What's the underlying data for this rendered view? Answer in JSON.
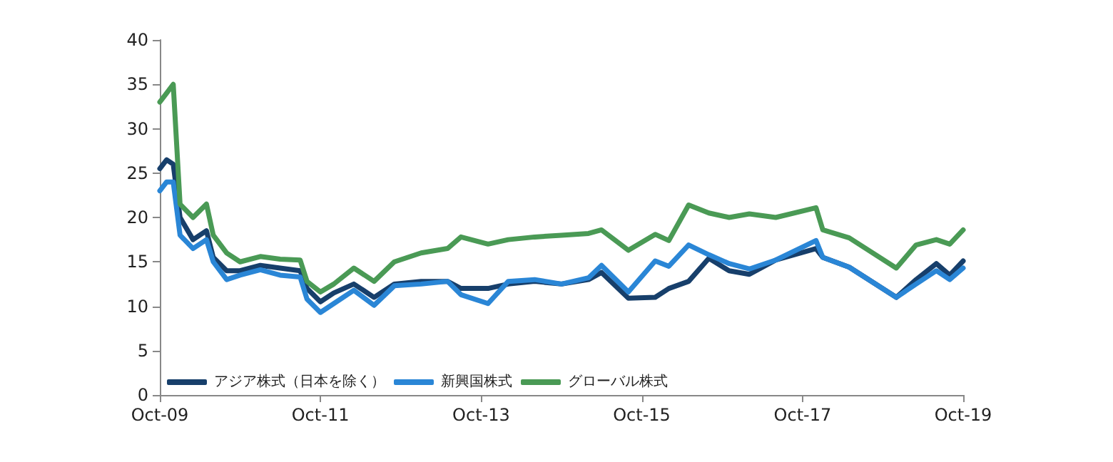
{
  "chart_data": {
    "type": "line",
    "x": [
      "2009-10",
      "2009-11",
      "2009-12",
      "2010-01",
      "2010-03",
      "2010-05",
      "2010-06",
      "2010-08",
      "2010-10",
      "2011-01",
      "2011-04",
      "2011-07",
      "2011-08",
      "2011-10",
      "2011-12",
      "2012-03",
      "2012-06",
      "2012-09",
      "2013-01",
      "2013-05",
      "2013-07",
      "2013-11",
      "2014-02",
      "2014-06",
      "2014-10",
      "2015-02",
      "2015-04",
      "2015-08",
      "2015-12",
      "2016-02",
      "2016-05",
      "2016-08",
      "2016-11",
      "2017-02",
      "2017-06",
      "2017-12",
      "2018-01",
      "2018-05",
      "2018-12",
      "2019-03",
      "2019-06",
      "2019-08",
      "2019-10"
    ],
    "series": [
      {
        "name": "アジア株式（日本を除く）",
        "color": "#173f6b",
        "values": [
          25.5,
          26.5,
          26,
          20,
          17.5,
          18.5,
          15.5,
          14,
          14,
          14.6,
          14.3,
          14,
          12,
          10.5,
          11.5,
          12.5,
          11,
          12.5,
          12.8,
          12.8,
          12,
          12,
          12.5,
          12.8,
          12.5,
          13,
          13.8,
          10.9,
          11,
          12,
          12.8,
          15.4,
          14,
          13.6,
          15.2,
          16.5,
          15.5,
          14.4,
          11,
          13,
          14.8,
          13.5,
          15.1
        ]
      },
      {
        "name": "新興国株式",
        "color": "#2a86d6",
        "values": [
          23,
          24,
          24,
          18,
          16.5,
          17.5,
          15,
          13,
          13.5,
          14.1,
          13.5,
          13.3,
          10.8,
          9.3,
          10.3,
          11.8,
          10.1,
          12.3,
          12.5,
          12.8,
          11.3,
          10.3,
          12.8,
          13,
          12.5,
          13.2,
          14.6,
          11.6,
          15.1,
          14.5,
          16.9,
          15.8,
          14.8,
          14.2,
          15.2,
          17.4,
          15.5,
          14.4,
          11,
          12.5,
          14,
          13,
          14.3
        ]
      },
      {
        "name": "グローバル株式",
        "color": "#4a9a55",
        "values": [
          33,
          34,
          35,
          21.5,
          20,
          21.5,
          18,
          16,
          15,
          15.6,
          15.3,
          15.2,
          12.8,
          11.6,
          12.5,
          14.3,
          12.8,
          15,
          16,
          16.5,
          17.8,
          17,
          17.5,
          17.8,
          18,
          18.2,
          18.6,
          16.3,
          18.1,
          17.4,
          21.4,
          20.5,
          20,
          20.4,
          20,
          21.1,
          18.6,
          17.7,
          14.3,
          16.9,
          17.5,
          17,
          18.6
        ]
      }
    ],
    "xlim": [
      "2009-10",
      "2019-10"
    ],
    "xticks": [
      {
        "value": "2009-10",
        "label": "Oct-09"
      },
      {
        "value": "2011-10",
        "label": "Oct-11"
      },
      {
        "value": "2013-10",
        "label": "Oct-13"
      },
      {
        "value": "2015-10",
        "label": "Oct-15"
      },
      {
        "value": "2017-10",
        "label": "Oct-17"
      },
      {
        "value": "2019-10",
        "label": "Oct-19"
      }
    ],
    "ylim": [
      0,
      40
    ],
    "yticks": [
      0,
      5,
      10,
      15,
      20,
      25,
      30,
      35,
      40
    ],
    "grid": false,
    "legend": "bottom left",
    "marker": "none",
    "line_style": "solid"
  }
}
